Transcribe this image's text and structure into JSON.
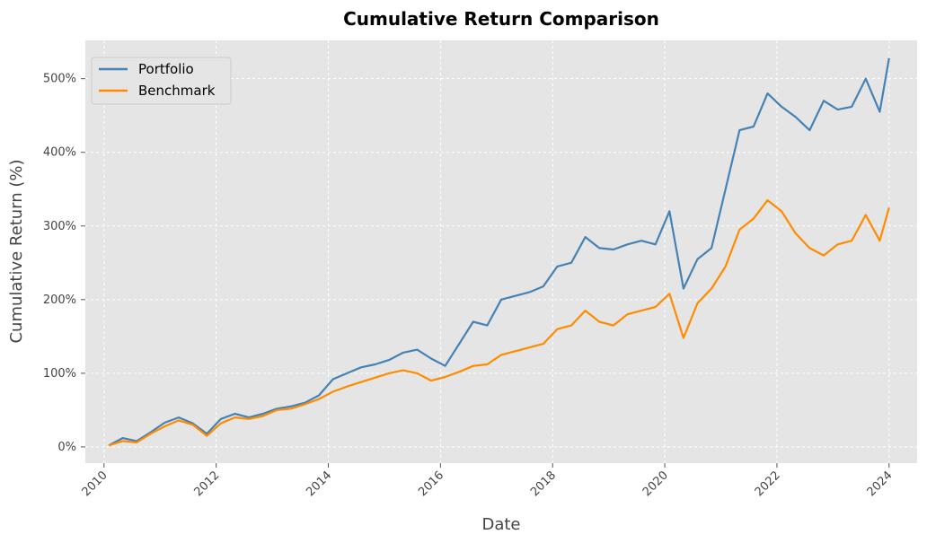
{
  "chart_data": {
    "type": "line",
    "title": "Cumulative Return Comparison",
    "xlabel": "Date",
    "ylabel": "Cumulative Return (%)",
    "x_ticks": [
      "2010",
      "2012",
      "2014",
      "2016",
      "2018",
      "2020",
      "2022",
      "2024"
    ],
    "y_ticks": [
      "0%",
      "100%",
      "200%",
      "300%",
      "400%",
      "500%"
    ],
    "xlim": [
      "2009-09",
      "2024-07"
    ],
    "ylim": [
      -22,
      552
    ],
    "grid": true,
    "legend": "top-left",
    "background_color": "#e5e5e5",
    "x": [
      "2010-02",
      "2010-05",
      "2010-08",
      "2010-11",
      "2011-02",
      "2011-05",
      "2011-08",
      "2011-11",
      "2012-02",
      "2012-05",
      "2012-08",
      "2012-11",
      "2013-02",
      "2013-05",
      "2013-08",
      "2013-11",
      "2014-02",
      "2014-05",
      "2014-08",
      "2014-11",
      "2015-02",
      "2015-05",
      "2015-08",
      "2015-11",
      "2016-02",
      "2016-05",
      "2016-08",
      "2016-11",
      "2017-02",
      "2017-05",
      "2017-08",
      "2017-11",
      "2018-02",
      "2018-05",
      "2018-08",
      "2018-11",
      "2019-02",
      "2019-05",
      "2019-08",
      "2019-11",
      "2020-02",
      "2020-05",
      "2020-08",
      "2020-11",
      "2021-02",
      "2021-05",
      "2021-08",
      "2021-11",
      "2022-02",
      "2022-05",
      "2022-08",
      "2022-11",
      "2023-02",
      "2023-05",
      "2023-08",
      "2023-11",
      "2024-01"
    ],
    "series": [
      {
        "name": "Portfolio",
        "color": "#4682b4",
        "values": [
          2,
          12,
          8,
          20,
          33,
          40,
          32,
          18,
          38,
          45,
          40,
          45,
          52,
          55,
          60,
          70,
          92,
          100,
          108,
          112,
          118,
          128,
          132,
          120,
          110,
          140,
          170,
          165,
          200,
          205,
          210,
          218,
          245,
          250,
          285,
          270,
          268,
          275,
          280,
          275,
          320,
          215,
          255,
          270,
          350,
          430,
          435,
          480,
          462,
          448,
          430,
          470,
          458,
          462,
          500,
          455,
          528
        ]
      },
      {
        "name": "Benchmark",
        "color": "#ff8c00",
        "values": [
          2,
          8,
          6,
          18,
          28,
          36,
          30,
          15,
          32,
          40,
          38,
          42,
          50,
          52,
          58,
          65,
          75,
          82,
          88,
          94,
          100,
          104,
          100,
          90,
          95,
          102,
          110,
          112,
          125,
          130,
          135,
          140,
          160,
          165,
          185,
          170,
          165,
          180,
          185,
          190,
          208,
          148,
          195,
          215,
          245,
          295,
          310,
          335,
          320,
          290,
          270,
          260,
          275,
          280,
          315,
          280,
          325
        ]
      }
    ]
  }
}
